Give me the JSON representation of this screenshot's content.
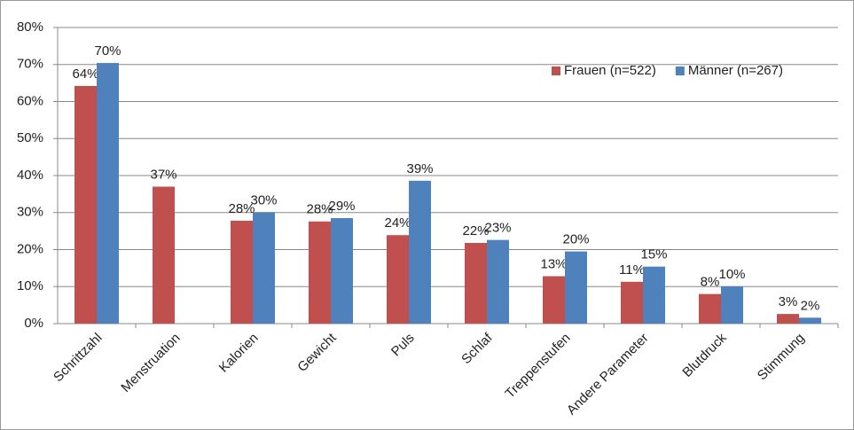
{
  "chart_data": {
    "type": "bar",
    "categories": [
      "Schrittzahl",
      "Menstruation",
      "Kalorien",
      "Gewicht",
      "Puls",
      "Schlaf",
      "Treppenstufen",
      "Andere Parameter",
      "Blutdruck",
      "Stimmung"
    ],
    "series": [
      {
        "name": "Frauen (n=522)",
        "color": "#c0504d",
        "values": [
          64.2,
          37,
          27.8,
          27.6,
          23.9,
          21.8,
          12.8,
          11.3,
          8.0,
          2.6
        ],
        "value_labels": [
          "64%",
          "37%",
          "28%",
          "28%",
          "24%",
          "22%",
          "13%",
          "11%",
          "8%",
          "3%"
        ]
      },
      {
        "name": "Männer (n=267)",
        "color": "#4f81bd",
        "values": [
          70.4,
          null,
          30.1,
          28.5,
          38.6,
          22.6,
          19.5,
          15.4,
          10.1,
          1.6
        ],
        "value_labels": [
          "70%",
          null,
          "30%",
          "29%",
          "39%",
          "23%",
          "20%",
          "15%",
          "10%",
          "2%"
        ]
      }
    ],
    "ylim": [
      0,
      80
    ],
    "yticks": [
      {
        "value": 0,
        "label": "0%"
      },
      {
        "value": 10,
        "label": "10%"
      },
      {
        "value": 20,
        "label": "20%"
      },
      {
        "value": 30,
        "label": "30%"
      },
      {
        "value": 40,
        "label": "40%"
      },
      {
        "value": 50,
        "label": "50%"
      },
      {
        "value": 60,
        "label": "60%"
      },
      {
        "value": 70,
        "label": "70%"
      },
      {
        "value": 80,
        "label": "80%"
      }
    ],
    "grid": true,
    "legend": "top-right"
  }
}
